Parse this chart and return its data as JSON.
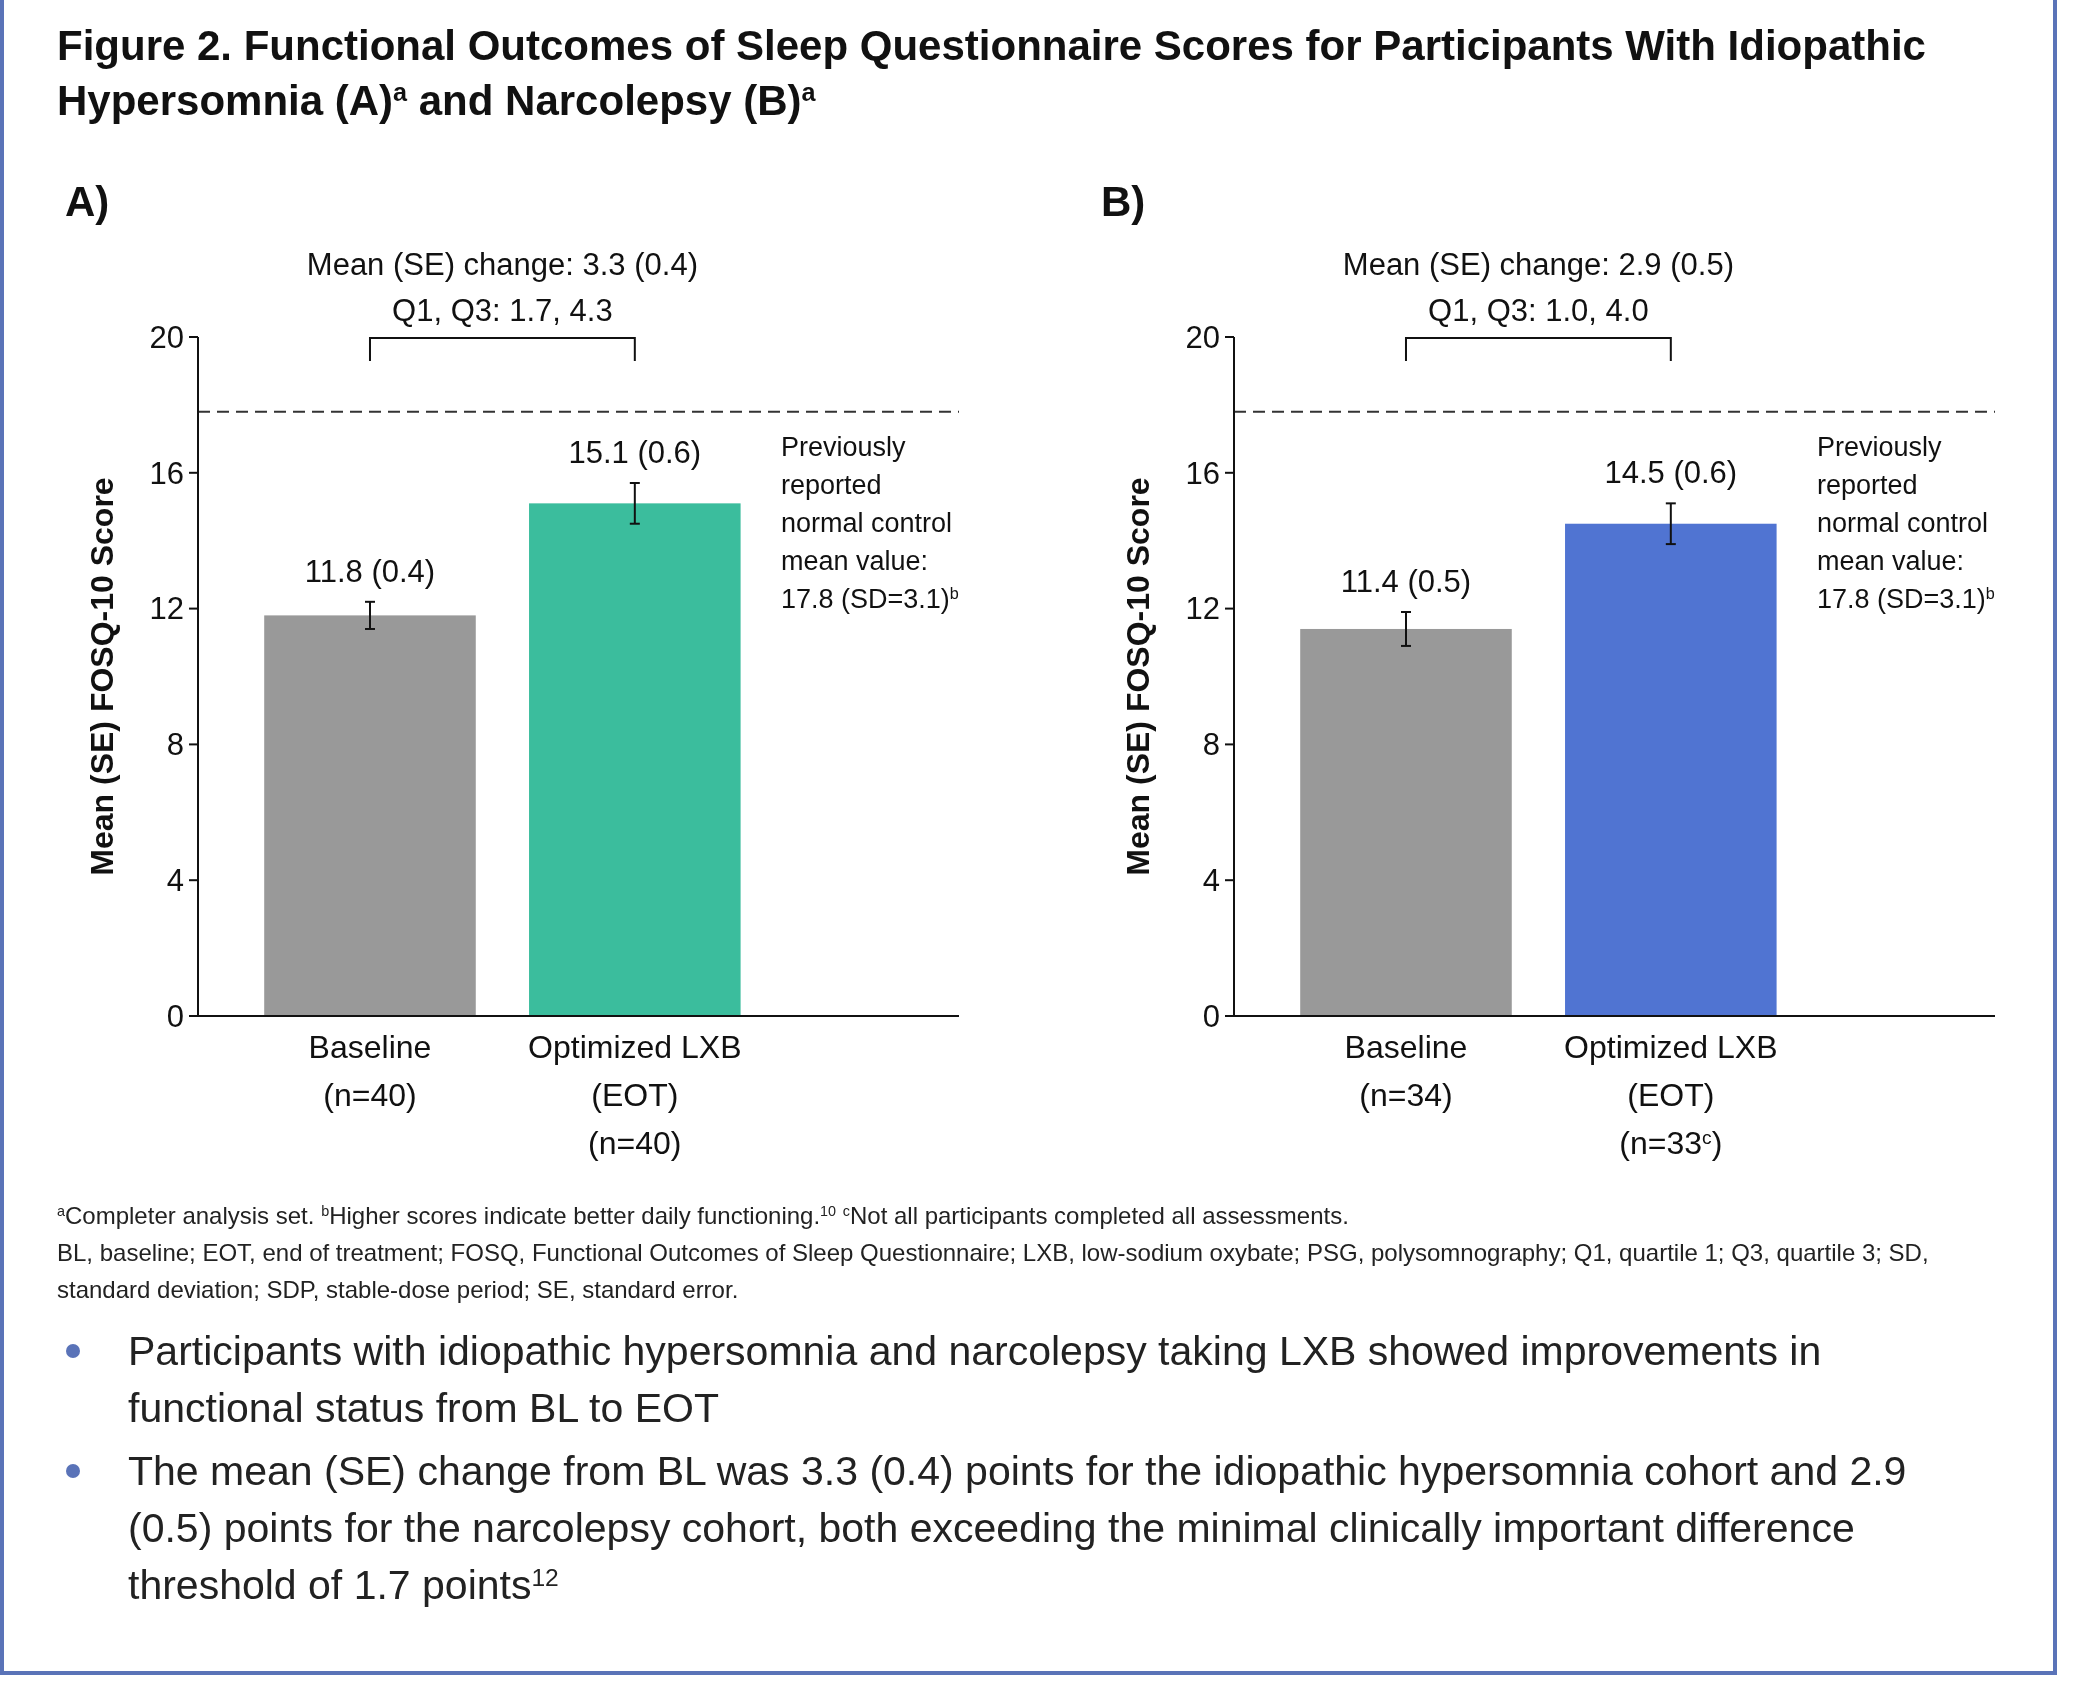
{
  "chart_data": [
    {
      "type": "bar",
      "title": "Figure 2. Functional Outcomes of Sleep Questionnaire Scores for Participants With Idiopathic Hypersomnia (A)$^{a}$ and Narcolepsy (B)$^{a}$",
      "subtitle": "A)",
      "ylabel": "Mean (SE) FOSQ-10 Score",
      "categories": [
        "Baseline\n(n=40)",
        "Optimized LXB\n(EOT)\n(n=40)"
      ],
      "values": [
        11.8,
        15.1
      ],
      "colors": [
        "#999999",
        "#3bbd9d"
      ],
      "errors": [
        0.4,
        0.6
      ],
      "value_labels": [
        "11.8 (0.4)",
        "15.1 (0.6)"
      ],
      "ylim": [
        0,
        20
      ],
      "yticks": [
        0,
        4,
        8,
        12,
        16,
        20
      ],
      "ref_lines": [
        {
          "axis": "y",
          "value": 17.8,
          "label": "Previously reported normal control mean value: 17.8 (SD=3.1)$^{b}$",
          "color": "#333333",
          "line_style": "dashed"
        }
      ],
      "annotations": [
        "Mean (SE) change: 3.3 (0.4)",
        "Q1, Q3: 1.7, 4.3"
      ]
    },
    {
      "type": "bar",
      "subtitle": "B)",
      "ylabel": "Mean (SE) FOSQ-10 Score",
      "categories": [
        "Baseline\n(n=34)",
        "Optimized LXB\n(EOT)\n(n=33$^{c}$)"
      ],
      "values": [
        11.4,
        14.5
      ],
      "colors": [
        "#999999",
        "#5074d2"
      ],
      "errors": [
        0.5,
        0.6
      ],
      "value_labels": [
        "11.4 (0.5)",
        "14.5 (0.6)"
      ],
      "ylim": [
        0,
        20
      ],
      "yticks": [
        0,
        4,
        8,
        12,
        16,
        20
      ],
      "ref_lines": [
        {
          "axis": "y",
          "value": 17.8,
          "label": "Previously reported normal control mean value: 17.8 (SD=3.1)$^{b}$",
          "color": "#333333",
          "line_style": "dashed"
        }
      ],
      "annotations": [
        "Mean (SE) change: 2.9 (0.5)",
        "Q1, Q3: 1.0, 4.0",
        "$^{a}$Completer analysis set. $^{b}$Higher scores indicate better daily functioning.$^{10}$ $^{c}$Not all participants completed all assessments.",
        "BL, baseline; EOT, end of treatment; FOSQ, Functional Outcomes of Sleep Questionnaire; LXB, low-sodium oxybate; PSG, polysomnography; Q1, quartile 1; Q3, quartile 3; SD, standard deviation; SDP, stable-dose period; SE, standard error.",
        "Participants with idiopathic hypersomnia and narcolepsy taking LXB showed improvements in functional status from BL to EOT",
        "The mean (SE) change from BL was 3.3 (0.4) points for the idiopathic hypersomnia cohort and 2.9 (0.5) points for the narcolepsy cohort, both exceeding the minimal clinically important difference threshold of 1.7 points$^{12}$"
      ]
    }
  ]
}
